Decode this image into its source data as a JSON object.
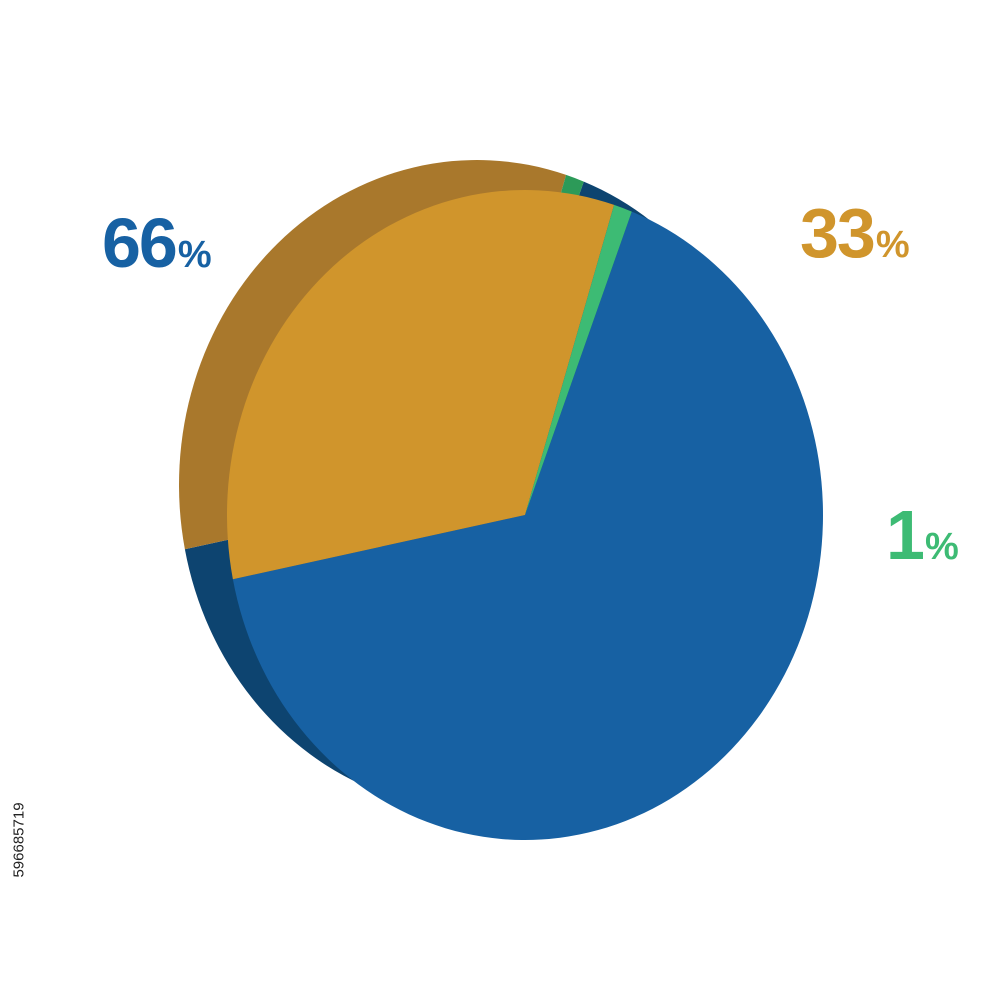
{
  "chart_data": {
    "type": "pie",
    "style": "3d-extruded",
    "start_angle_deg": -69,
    "slices": [
      {
        "value": 66,
        "label": "66",
        "symbol": "%",
        "color": "#1761a3",
        "side_color": "#0d4470"
      },
      {
        "value": 33,
        "label": "33",
        "symbol": "%",
        "color": "#d0952c",
        "side_color": "#a9782c"
      },
      {
        "value": 1,
        "label": "1",
        "symbol": "%",
        "color": "#3dbb74",
        "side_color": "#2c9a58"
      }
    ]
  },
  "side_id": "596685719",
  "colors": {
    "background": "#ffffff"
  }
}
